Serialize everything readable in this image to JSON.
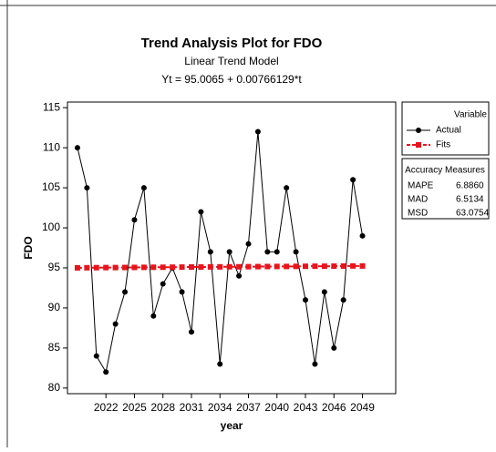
{
  "chart_data": {
    "type": "line",
    "title": "Trend Analysis Plot for FDO",
    "subtitle": "Linear Trend Model",
    "equation": "Yt = 95.0065 + 0.00766129*t",
    "x_label": "year",
    "y_label": "FDO",
    "legend_title": "Variable",
    "x": [
      2019,
      2020,
      2021,
      2022,
      2023,
      2024,
      2025,
      2026,
      2027,
      2028,
      2029,
      2030,
      2031,
      2032,
      2033,
      2034,
      2035,
      2036,
      2037,
      2038,
      2039,
      2040,
      2041,
      2042,
      2043,
      2044,
      2045,
      2046,
      2047,
      2048,
      2049
    ],
    "series": [
      {
        "name": "Actual",
        "color": "#000000",
        "marker": "circle",
        "dash": false,
        "values": [
          110,
          105,
          84,
          82,
          88,
          92,
          101,
          105,
          89,
          93,
          95,
          92,
          87,
          102,
          97,
          83,
          97,
          94,
          98,
          112,
          97,
          97,
          105,
          97,
          91,
          83,
          92,
          85,
          91,
          106,
          99
        ]
      },
      {
        "name": "Fits",
        "color": "#e8141c",
        "marker": "square",
        "dash": true,
        "values": [
          95.01,
          95.02,
          95.03,
          95.04,
          95.04,
          95.05,
          95.06,
          95.07,
          95.08,
          95.08,
          95.09,
          95.1,
          95.11,
          95.11,
          95.12,
          95.13,
          95.14,
          95.14,
          95.15,
          95.16,
          95.17,
          95.18,
          95.18,
          95.19,
          95.2,
          95.21,
          95.21,
          95.22,
          95.23,
          95.24,
          95.24
        ]
      }
    ],
    "xlim": [
      2017.95,
      2052.5
    ],
    "ylim": [
      79.3,
      115.7
    ],
    "xticks": [
      2022,
      2025,
      2028,
      2031,
      2034,
      2037,
      2040,
      2043,
      2046,
      2049
    ],
    "yticks": [
      80,
      85,
      90,
      95,
      100,
      105,
      110,
      115
    ],
    "accuracy": {
      "title": "Accuracy Measures",
      "rows": [
        [
          "MAPE",
          "6.8860"
        ],
        [
          "MAD",
          "6.5134"
        ],
        [
          "MSD",
          "63.0754"
        ]
      ]
    }
  }
}
